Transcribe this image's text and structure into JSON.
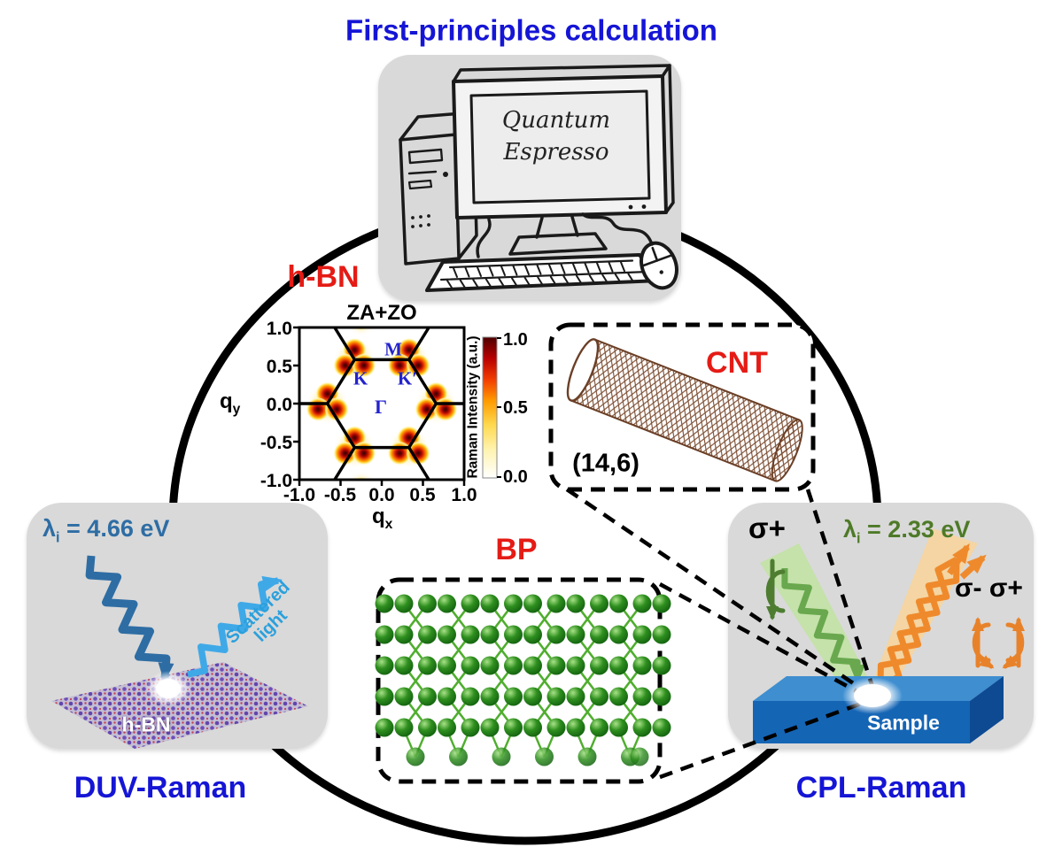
{
  "title": "First-principles calculation",
  "computer": {
    "screen_line1": "Quantum",
    "screen_line2": "Espresso"
  },
  "materials": {
    "hbn_label": "h-BN",
    "cnt_label": "CNT",
    "cnt_chirality": "(14,6)",
    "bp_label": "BP"
  },
  "hbn_plot": {
    "title": "ZA+ZO",
    "xlabel_base": "q",
    "xlabel_sub": "x",
    "ylabel_base": "q",
    "ylabel_sub": "y",
    "x_ticks": [
      "-1.0",
      "-0.5",
      "0.0",
      "0.5",
      "1.0"
    ],
    "y_ticks": [
      "1.0",
      "0.5",
      "0.0",
      "-0.5",
      "-1.0"
    ],
    "colorbar_label": "Raman Intensity (a.u.)",
    "colorbar_ticks": [
      "1.0",
      "0.5",
      "0.0"
    ],
    "points": {
      "M": "M",
      "K": "K",
      "Kprime": "K′",
      "Gamma": "Γ"
    }
  },
  "duv": {
    "lambda_prefix": "λ",
    "lambda_sub": "i",
    "lambda_value": " = 4.66 eV",
    "scattered_label": "Scattered light",
    "sheet_label": "h-BN",
    "caption": "DUV-Raman"
  },
  "cpl": {
    "lambda_prefix": "λ",
    "lambda_sub": "i",
    "lambda_value": " = 2.33 eV",
    "sigma_in": "σ+",
    "sigma_out": "σ- σ+",
    "sample_label": "Sample",
    "caption": "CPL-Raman"
  },
  "colors": {
    "accent_blue": "#1515d6",
    "accent_red": "#e51b15",
    "duv_blue": "#2e6da4",
    "scattered_blue": "#3fa9e8",
    "cpl_green": "#69a84e",
    "cpl_dark_green": "#4e7d32",
    "cpl_olive": "#4e7a28",
    "cpl_orange": "#ef8a2c",
    "sample_blue": "#1565b5",
    "box_gray": "#d9d9d9"
  },
  "chart_data": {
    "type": "heatmap",
    "title": "ZA+ZO",
    "xlabel": "qx",
    "ylabel": "qy",
    "xlim": [
      -1.0,
      1.0
    ],
    "ylim": [
      -1.0,
      1.0
    ],
    "x_ticks": [
      -1.0,
      -0.5,
      0.0,
      0.5,
      1.0
    ],
    "y_ticks": [
      1.0,
      0.5,
      0.0,
      -0.5,
      -1.0
    ],
    "grid": false,
    "colorbar": {
      "label": "Raman Intensity (a.u.)",
      "ticks": [
        1.0,
        0.5,
        0.0
      ],
      "range": [
        0.0,
        1.0
      ]
    },
    "brillouin_zone_vertices_q": [
      [
        0.66,
        0
      ],
      [
        0.33,
        0.577
      ],
      [
        -0.33,
        0.577
      ],
      [
        -0.66,
        0
      ],
      [
        -0.33,
        -0.577
      ],
      [
        0.33,
        -0.577
      ]
    ],
    "high_intensity_points_q": [
      [
        0.66,
        0
      ],
      [
        0.33,
        0.577
      ],
      [
        -0.33,
        0.577
      ],
      [
        -0.66,
        0
      ],
      [
        -0.33,
        -0.577
      ],
      [
        0.33,
        -0.577
      ]
    ],
    "high_intensity_value": 1.0,
    "edge_points_q": [
      [
        -0.25,
        1.1
      ],
      [
        -0.25,
        -1.1
      ]
    ],
    "bz_labels": [
      {
        "label": "Γ",
        "q": [
          0,
          0
        ]
      },
      {
        "label": "M",
        "q": [
          0.13,
          0.62
        ]
      },
      {
        "label": "K",
        "q": [
          -0.26,
          0.33
        ]
      },
      {
        "label": "K′",
        "q": [
          0.3,
          0.33
        ]
      }
    ]
  }
}
